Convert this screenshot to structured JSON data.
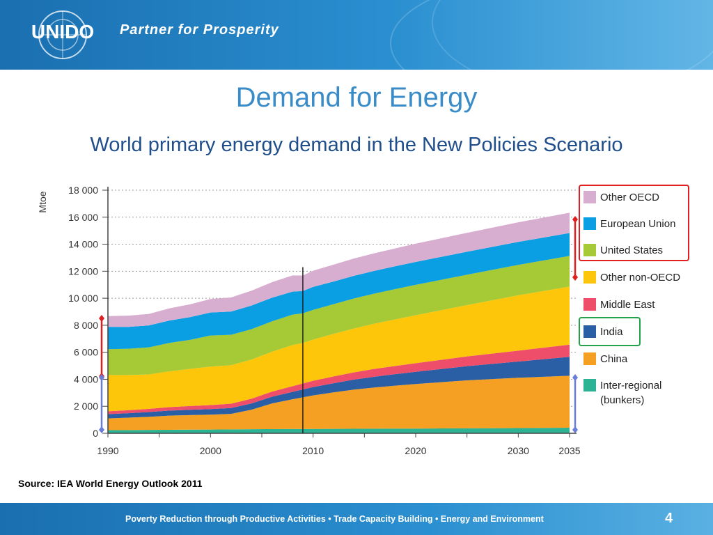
{
  "header": {
    "logo_text": "UNIDO",
    "tagline": "Partner for Prosperity"
  },
  "slide": {
    "title": "Demand for Energy",
    "subtitle": "World primary energy demand in the New Policies Scenario",
    "source": "Source: IEA World Energy Outlook 2011"
  },
  "footer": {
    "text": "Poverty Reduction through Productive Activities  •  Trade Capacity Building  •  Energy and Environment",
    "page_number": "4"
  },
  "icons": [
    "un-emblem-icon",
    "bracket-arrow-icon"
  ],
  "colors": {
    "header_blue": "#1a6fb0",
    "title_blue": "#3a8cc8",
    "subtitle_blue": "#1f4e8a",
    "bracket_red": "#e02020",
    "bracket_green": "#22a24a",
    "bracket_purple": "#6a7ed8"
  },
  "chart_data": {
    "type": "area",
    "stacked": true,
    "ylabel": "Mtoe",
    "ylim": [
      0,
      18000
    ],
    "yticks": [
      0,
      2000,
      4000,
      6000,
      8000,
      10000,
      12000,
      14000,
      16000,
      18000
    ],
    "ytick_labels": [
      "0",
      "2 000",
      "4 000",
      "6 000",
      "8 000",
      "10 000",
      "12 000",
      "14 000",
      "16 000",
      "18 000"
    ],
    "xticks": [
      1990,
      2000,
      2010,
      2020,
      2030,
      2035
    ],
    "xtick_labels": [
      "1990",
      "2000",
      "2010",
      "2020",
      "2030",
      "2035"
    ],
    "xlim": [
      1990,
      2035
    ],
    "marker_year": 2009,
    "grid": true,
    "legend_position": "right",
    "x": [
      1990,
      1992,
      1994,
      1996,
      1998,
      2000,
      2002,
      2004,
      2006,
      2008,
      2009,
      2010,
      2012,
      2014,
      2016,
      2018,
      2020,
      2025,
      2030,
      2035
    ],
    "series": [
      {
        "name": "Inter-regional (bunkers)",
        "color": "#2bb394",
        "values": [
          230,
          240,
          250,
          260,
          270,
          280,
          290,
          300,
          310,
          320,
          315,
          325,
          330,
          335,
          340,
          345,
          350,
          370,
          390,
          410
        ]
      },
      {
        "name": "China",
        "color": "#f5a023",
        "values": [
          870,
          920,
          970,
          1050,
          1080,
          1100,
          1150,
          1450,
          1900,
          2200,
          2350,
          2480,
          2700,
          2900,
          3050,
          3180,
          3300,
          3550,
          3720,
          3850
        ]
      },
      {
        "name": "India",
        "color": "#2b5fa5",
        "values": [
          320,
          330,
          350,
          370,
          390,
          410,
          430,
          460,
          500,
          550,
          580,
          620,
          680,
          740,
          800,
          850,
          900,
          1050,
          1200,
          1400
        ]
      },
      {
        "name": "Middle East",
        "color": "#ee4e6a",
        "values": [
          210,
          220,
          240,
          260,
          280,
          300,
          320,
          350,
          380,
          420,
          440,
          460,
          500,
          540,
          580,
          610,
          640,
          720,
          810,
          900
        ]
      },
      {
        "name": "Other non-OECD",
        "color": "#fdc60a",
        "values": [
          2680,
          2600,
          2550,
          2650,
          2750,
          2850,
          2850,
          2900,
          2950,
          3050,
          3000,
          3050,
          3150,
          3250,
          3350,
          3450,
          3550,
          3800,
          4100,
          4300
        ]
      },
      {
        "name": "United States",
        "color": "#a6c936",
        "values": [
          1920,
          1950,
          2000,
          2100,
          2150,
          2300,
          2250,
          2250,
          2250,
          2250,
          2200,
          2200,
          2200,
          2220,
          2230,
          2240,
          2250,
          2250,
          2250,
          2270
        ]
      },
      {
        "name": "European Union",
        "color": "#0a9ee2",
        "values": [
          1650,
          1620,
          1630,
          1660,
          1680,
          1700,
          1720,
          1750,
          1750,
          1700,
          1650,
          1700,
          1680,
          1680,
          1680,
          1690,
          1700,
          1700,
          1700,
          1700
        ]
      },
      {
        "name": "Other OECD",
        "color": "#d7aed0",
        "values": [
          800,
          830,
          850,
          900,
          950,
          1000,
          1050,
          1100,
          1150,
          1200,
          1150,
          1200,
          1250,
          1280,
          1300,
          1320,
          1350,
          1400,
          1450,
          1500
        ]
      }
    ]
  }
}
